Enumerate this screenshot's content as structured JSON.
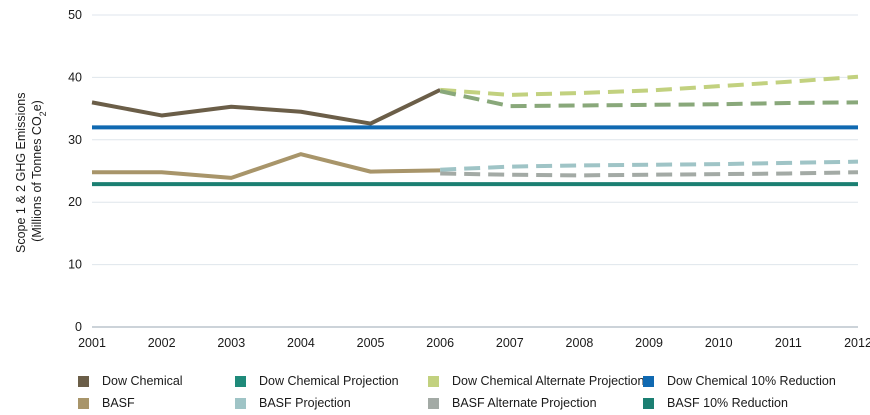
{
  "chart_data": {
    "type": "line",
    "ylabel_line1": "Scope 1 & 2 GHG Emissions",
    "ylabel_line2_prefix": "(Millions of Tonnes CO",
    "ylabel_line2_sub": "2",
    "ylabel_line2_suffix": "e)",
    "ylim": [
      0,
      50
    ],
    "yticks": [
      0,
      10,
      20,
      30,
      40,
      50
    ],
    "x": [
      2001,
      2002,
      2003,
      2004,
      2005,
      2006,
      2007,
      2008,
      2009,
      2010,
      2011,
      2012
    ],
    "grid": true,
    "legend_position": "bottom",
    "series": [
      {
        "name": "Dow Chemical",
        "color": "#6b5e48",
        "dash": false,
        "width": 4,
        "x": [
          2001,
          2002,
          2003,
          2004,
          2005,
          2006
        ],
        "y": [
          36.0,
          33.9,
          35.3,
          34.5,
          32.6,
          38.0
        ]
      },
      {
        "name": "Dow Chemical Projection",
        "color": "#1f8a7a",
        "dash": true,
        "width": 4,
        "legend_only": true,
        "x": [],
        "y": []
      },
      {
        "name": "Dow Chemical Alternate Projection",
        "color": "#c2d17f",
        "dash": true,
        "width": 4,
        "x": [
          2006,
          2007,
          2008,
          2009,
          2010,
          2011,
          2012
        ],
        "y": [
          38.0,
          37.2,
          37.5,
          37.9,
          38.6,
          39.3,
          40.1
        ]
      },
      {
        "name": "Dow Chemical 10% Reduction",
        "color": "#1069b1",
        "dash": false,
        "width": 4,
        "x": [
          2001,
          2012
        ],
        "y": [
          32.0,
          32.0
        ]
      },
      {
        "name": "BASF",
        "color": "#a8956a",
        "dash": false,
        "width": 4,
        "x": [
          2001,
          2002,
          2003,
          2004,
          2005,
          2006
        ],
        "y": [
          24.8,
          24.8,
          23.9,
          27.7,
          24.9,
          25.1
        ]
      },
      {
        "name": "BASF Projection",
        "color": "#9fc4c6",
        "dash": true,
        "width": 4,
        "x": [
          2006,
          2007,
          2008,
          2009,
          2010,
          2011,
          2012
        ],
        "y": [
          25.2,
          25.7,
          25.9,
          26.0,
          26.1,
          26.3,
          26.5
        ]
      },
      {
        "name": "BASF Alternate Projection",
        "color": "#a3aaa5",
        "dash": true,
        "width": 4,
        "x": [
          2006,
          2007,
          2008,
          2009,
          2010,
          2011,
          2012
        ],
        "y": [
          24.6,
          24.4,
          24.3,
          24.4,
          24.5,
          24.6,
          24.8
        ]
      },
      {
        "name": "BASF 10% Reduction",
        "color": "#1b7f72",
        "dash": false,
        "width": 4,
        "x": [
          2001,
          2012
        ],
        "y": [
          22.9,
          22.9
        ]
      },
      {
        "name": "",
        "color": "#89a87a",
        "dash": true,
        "width": 4,
        "legend_only": false,
        "x": [
          2006,
          2007,
          2008,
          2009,
          2010,
          2011,
          2012
        ],
        "y": [
          37.8,
          35.4,
          35.5,
          35.6,
          35.7,
          35.9,
          36.0
        ]
      }
    ],
    "legend_order": [
      0,
      1,
      2,
      3,
      4,
      5,
      6,
      7
    ]
  }
}
